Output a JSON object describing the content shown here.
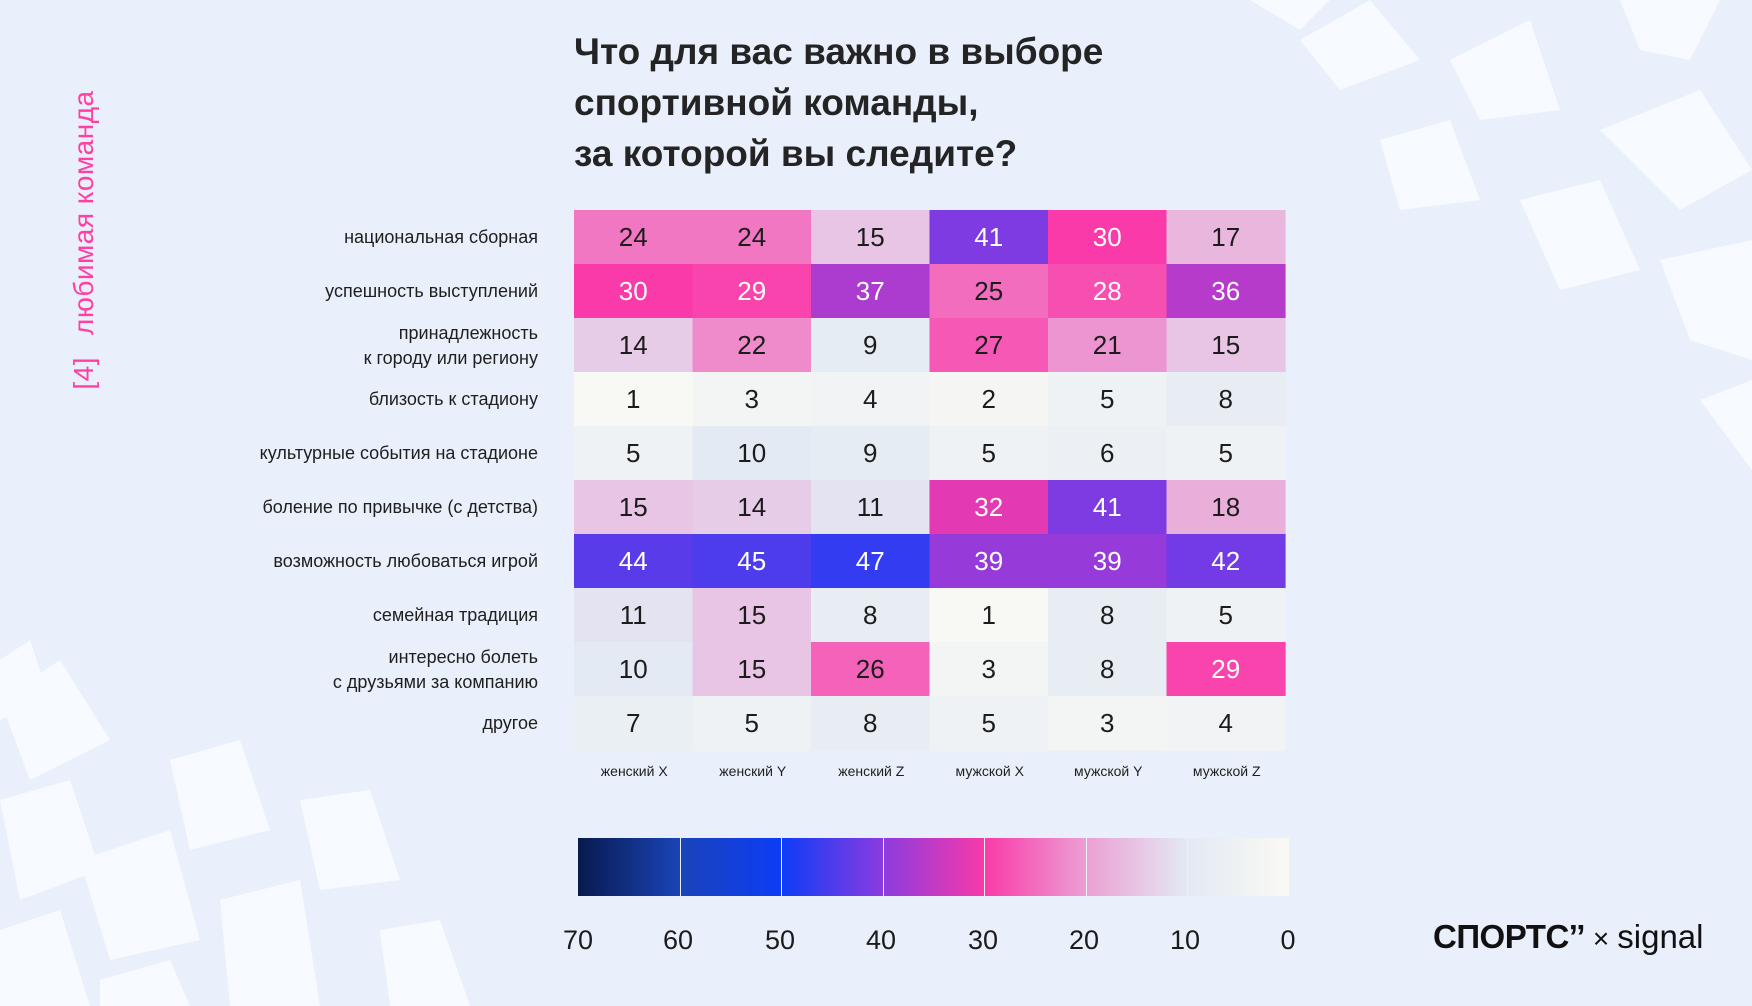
{
  "side_label": {
    "number": "[4]",
    "text": "любимая команда"
  },
  "title_lines": [
    "Что для вас важно в выборе",
    "спортивной команды,",
    "за которой вы следите?"
  ],
  "chart_data": {
    "type": "heatmap",
    "title": "Что для вас важно в выборе спортивной команды, за которой вы следите?",
    "rows": [
      [
        "национальная сборная"
      ],
      [
        "успешность выступлений"
      ],
      [
        "принадлежность",
        "к городу или региону"
      ],
      [
        "близость к стадиону"
      ],
      [
        "культурные события на стадионе"
      ],
      [
        "боление по привычке (с детства)"
      ],
      [
        "возможность любоваться игрой"
      ],
      [
        "семейная традиция"
      ],
      [
        "интересно болеть",
        "с друзьями за компанию"
      ],
      [
        "другое"
      ]
    ],
    "columns": [
      "женский X",
      "женский Y",
      "женский Z",
      "мужской X",
      "мужской Y",
      "мужской Z"
    ],
    "values": [
      [
        24,
        24,
        15,
        41,
        30,
        17
      ],
      [
        30,
        29,
        37,
        25,
        28,
        36
      ],
      [
        14,
        22,
        9,
        27,
        21,
        15
      ],
      [
        1,
        3,
        4,
        2,
        5,
        8
      ],
      [
        5,
        10,
        9,
        5,
        6,
        5
      ],
      [
        15,
        14,
        11,
        32,
        41,
        18
      ],
      [
        44,
        45,
        47,
        39,
        39,
        42
      ],
      [
        11,
        15,
        8,
        1,
        8,
        5
      ],
      [
        10,
        15,
        26,
        3,
        8,
        29
      ],
      [
        7,
        5,
        8,
        5,
        3,
        4
      ]
    ],
    "color_scale": {
      "range": [
        70,
        0
      ],
      "ticks": [
        "70",
        "60",
        "50",
        "40",
        "30",
        "20",
        "10",
        "0"
      ],
      "stops": [
        "#081a4e",
        "#1a44b8",
        "#0d3cf7",
        "#8b3be0",
        "#f93aa8",
        "#ec9fd4",
        "#e3eaf4",
        "#faf9f4"
      ]
    }
  },
  "logo": {
    "brand": "СПОРТС’’",
    "separator": "×",
    "partner": "signal"
  }
}
